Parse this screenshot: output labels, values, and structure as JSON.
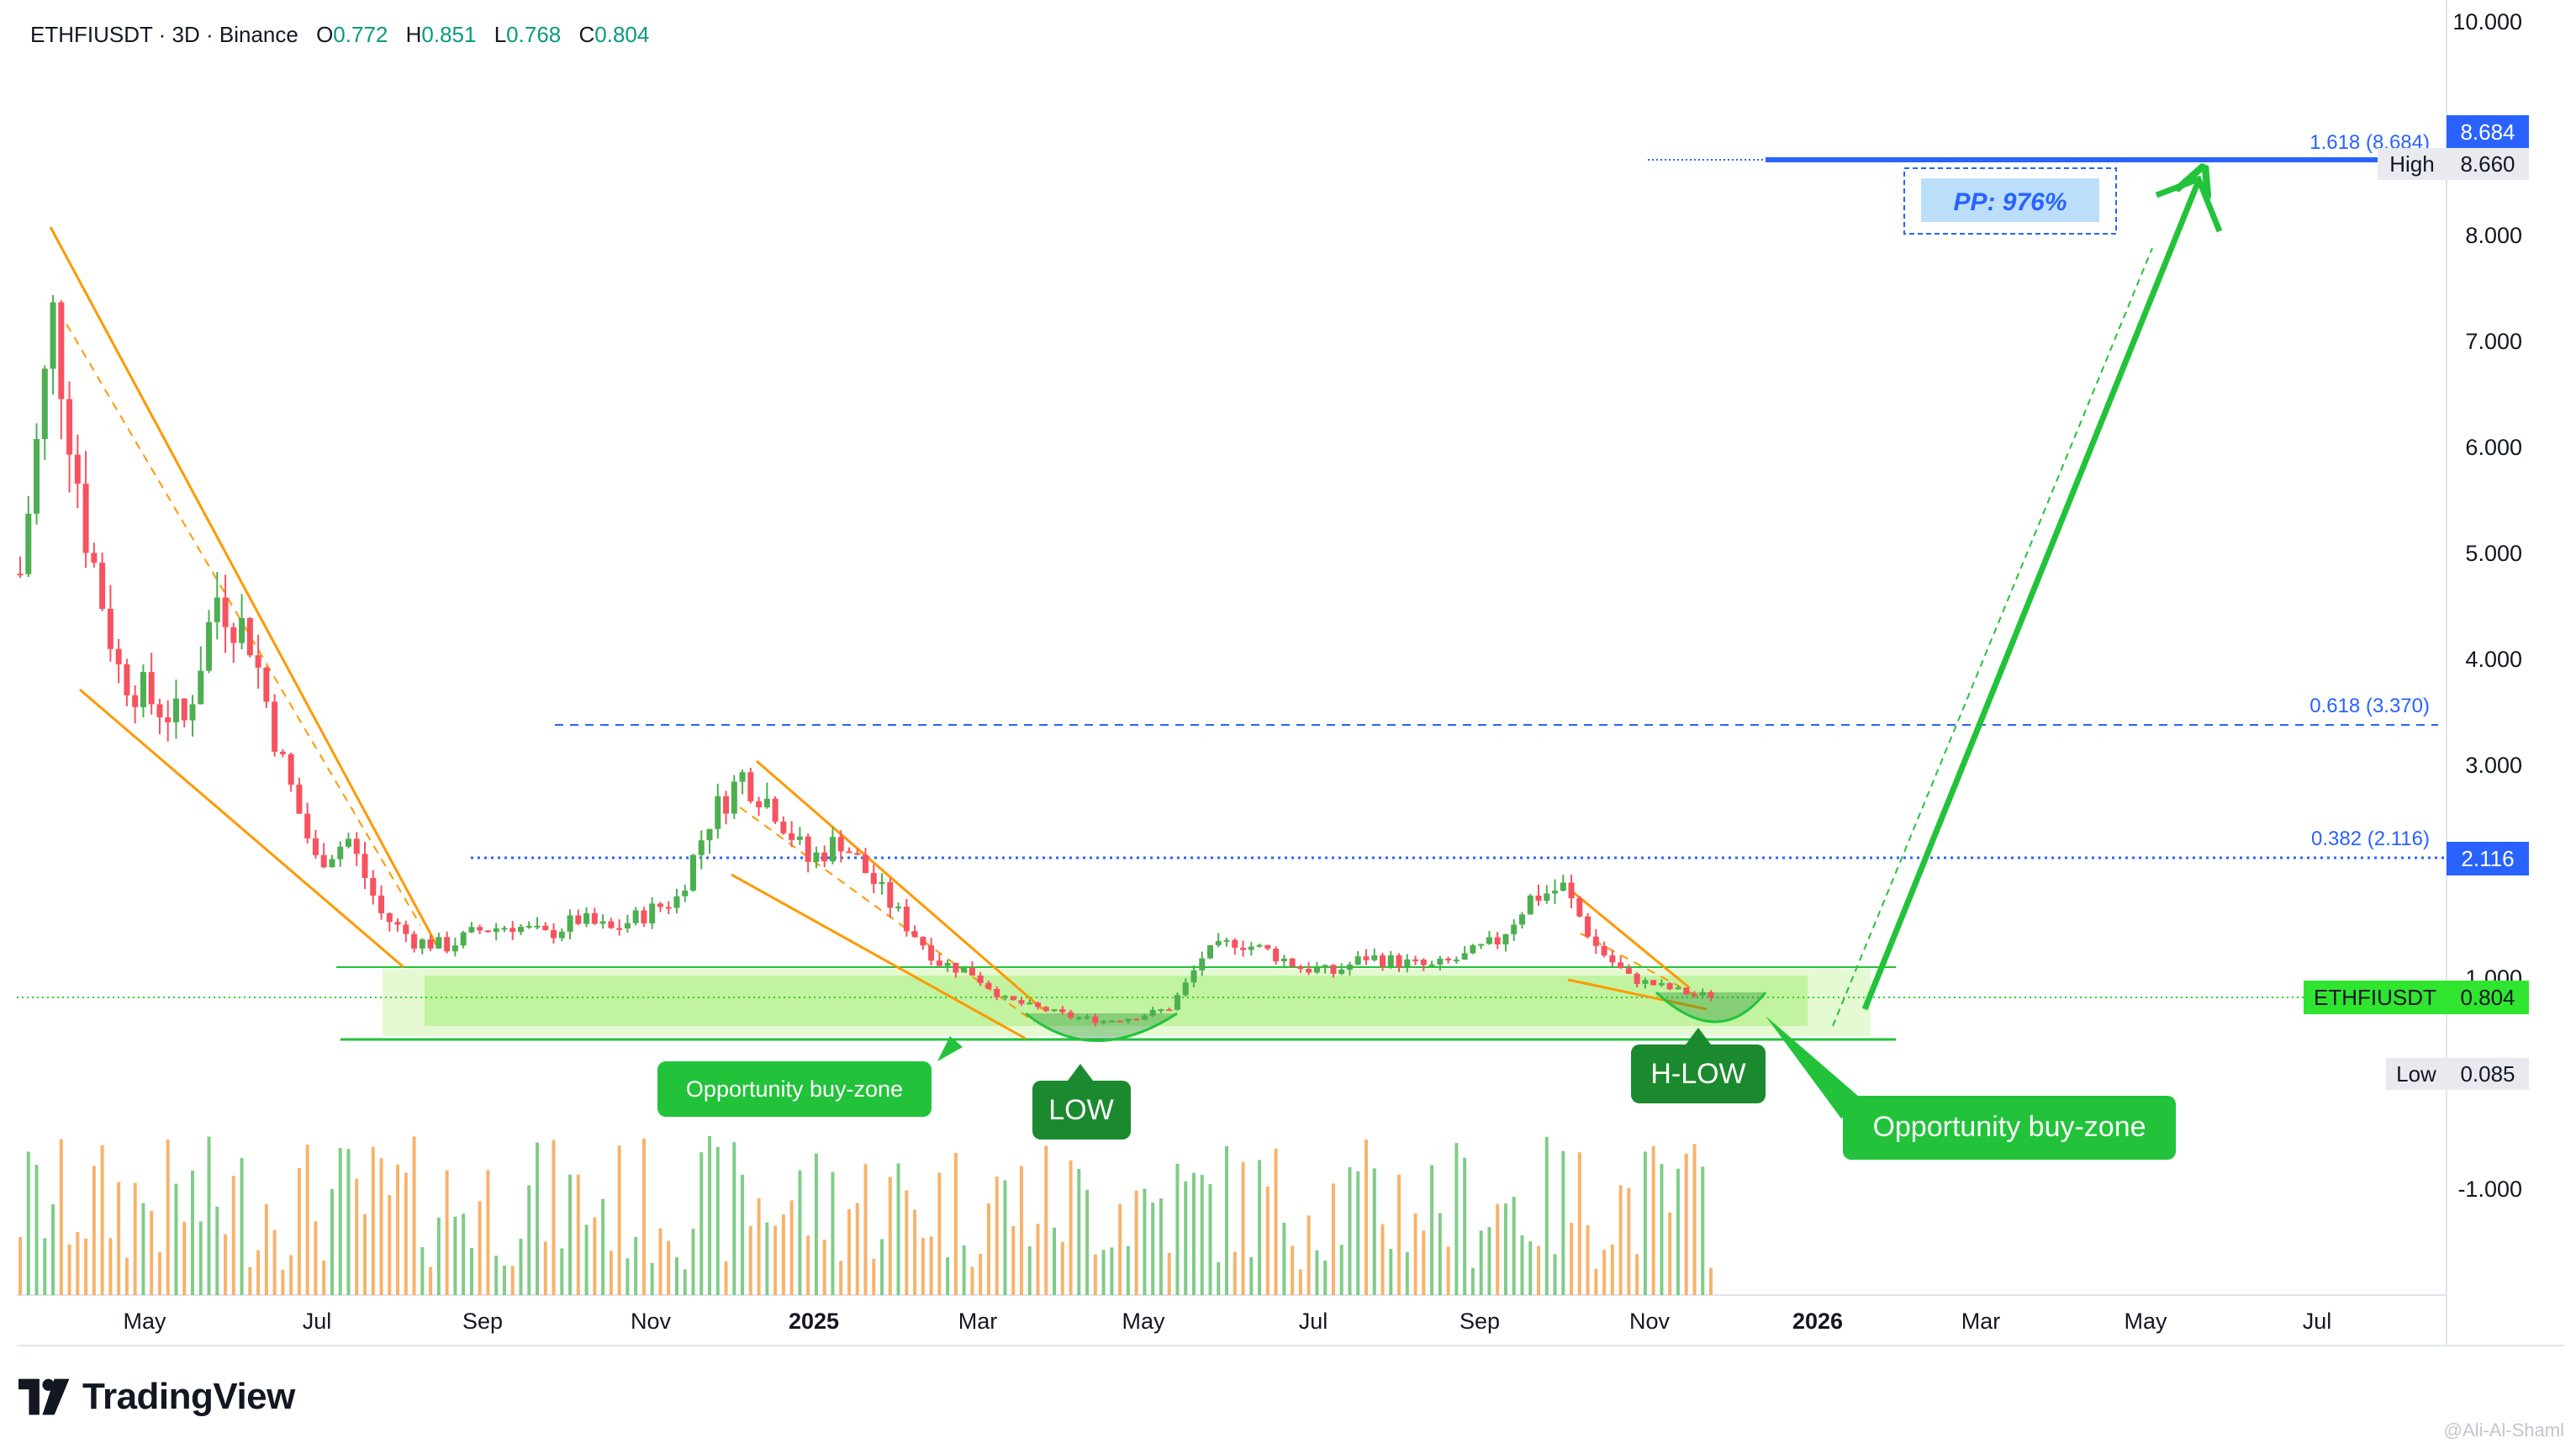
{
  "header": {
    "symbol": "ETHFIUSDT · 3D · Binance",
    "open_label": "O",
    "open": "0.772",
    "high_label": "H",
    "high": "0.851",
    "low_label": "L",
    "low": "0.768",
    "close_label": "C",
    "close": "0.804"
  },
  "brand": {
    "name": "TradingView",
    "watermark": "@Ali-Al-Shaml"
  },
  "colors": {
    "up": "#4caf50",
    "down": "#f7525f",
    "volume_up": "#80cc88",
    "volume_down": "#f7b36b",
    "channel": "#ff9800",
    "accent_blue": "#2962ff",
    "arrow_green": "#22c33a",
    "zone_fill": "#b6f08c",
    "label_green": "#22c33a",
    "label_dark_green": "#1b8a2e",
    "price_tag": "#30e530"
  },
  "chart_data": {
    "type": "candlestick",
    "symbol": "ETHFIUSDT",
    "timeframe": "3D",
    "exchange": "Binance",
    "x_labels": [
      "May",
      "Jul",
      "Sep",
      "Nov",
      "2025",
      "Mar",
      "May",
      "Jul",
      "Sep",
      "Nov",
      "2026",
      "Mar",
      "May",
      "Jul"
    ],
    "y_ticks": [
      "10.000",
      "8.000",
      "7.000",
      "6.000",
      "5.000",
      "4.000",
      "3.000",
      "1.000",
      "-1.000"
    ],
    "y_tick_values": [
      10,
      8,
      7,
      6,
      5,
      4,
      3,
      1,
      -1
    ],
    "ylim": [
      -2.0,
      10.0
    ],
    "price_path": [
      [
        0,
        4.8
      ],
      [
        2,
        7.2
      ],
      [
        4,
        5.2
      ],
      [
        6,
        3.9
      ],
      [
        8,
        3.6
      ],
      [
        10,
        3.4
      ],
      [
        12,
        4.6
      ],
      [
        14,
        4.2
      ],
      [
        16,
        3.0
      ],
      [
        18,
        2.1
      ],
      [
        20,
        2.3
      ],
      [
        22,
        1.6
      ],
      [
        24,
        1.35
      ],
      [
        26,
        1.3
      ],
      [
        28,
        1.45
      ],
      [
        30,
        1.5
      ],
      [
        32,
        1.4
      ],
      [
        34,
        1.55
      ],
      [
        36,
        1.45
      ],
      [
        38,
        1.6
      ],
      [
        40,
        1.75
      ],
      [
        42,
        2.5
      ],
      [
        44,
        2.9
      ],
      [
        46,
        2.6
      ],
      [
        48,
        2.1
      ],
      [
        50,
        2.3
      ],
      [
        52,
        1.9
      ],
      [
        54,
        1.5
      ],
      [
        56,
        1.15
      ],
      [
        58,
        1.05
      ],
      [
        60,
        0.75
      ],
      [
        62,
        0.65
      ],
      [
        64,
        0.55
      ],
      [
        66,
        0.5
      ],
      [
        68,
        0.55
      ],
      [
        70,
        0.65
      ],
      [
        72,
        1.2
      ],
      [
        74,
        1.35
      ],
      [
        76,
        1.25
      ],
      [
        78,
        1.1
      ],
      [
        80,
        1.05
      ],
      [
        82,
        1.2
      ],
      [
        84,
        1.15
      ],
      [
        86,
        1.1
      ],
      [
        88,
        1.2
      ],
      [
        90,
        1.35
      ],
      [
        92,
        1.75
      ],
      [
        94,
        1.85
      ],
      [
        96,
        1.3
      ],
      [
        98,
        1.0
      ],
      [
        100,
        0.9
      ],
      [
        102,
        0.8
      ],
      [
        103,
        0.804
      ]
    ],
    "levels": [
      {
        "label": "1.618 (8.684)",
        "price": 8.684
      },
      {
        "label": "0.618 (3.370)",
        "price": 3.37
      },
      {
        "label": "0.382 (2.116)",
        "price": 2.116
      }
    ],
    "price_tags": {
      "fib_top": "8.684",
      "high_label": "High",
      "high_value": "8.660",
      "fib_382": "2.116",
      "current_symbol": "ETHFIUSDT",
      "current_value": "0.804",
      "low_label": "Low",
      "low_value": "0.085"
    },
    "annotations": {
      "pp": "PP: 976%",
      "buy_zone_left": "Opportunity buy-zone",
      "buy_zone_right": "Opportunity buy-zone",
      "low": "LOW",
      "h_low": "H-LOW"
    },
    "volume_scale": 100
  }
}
